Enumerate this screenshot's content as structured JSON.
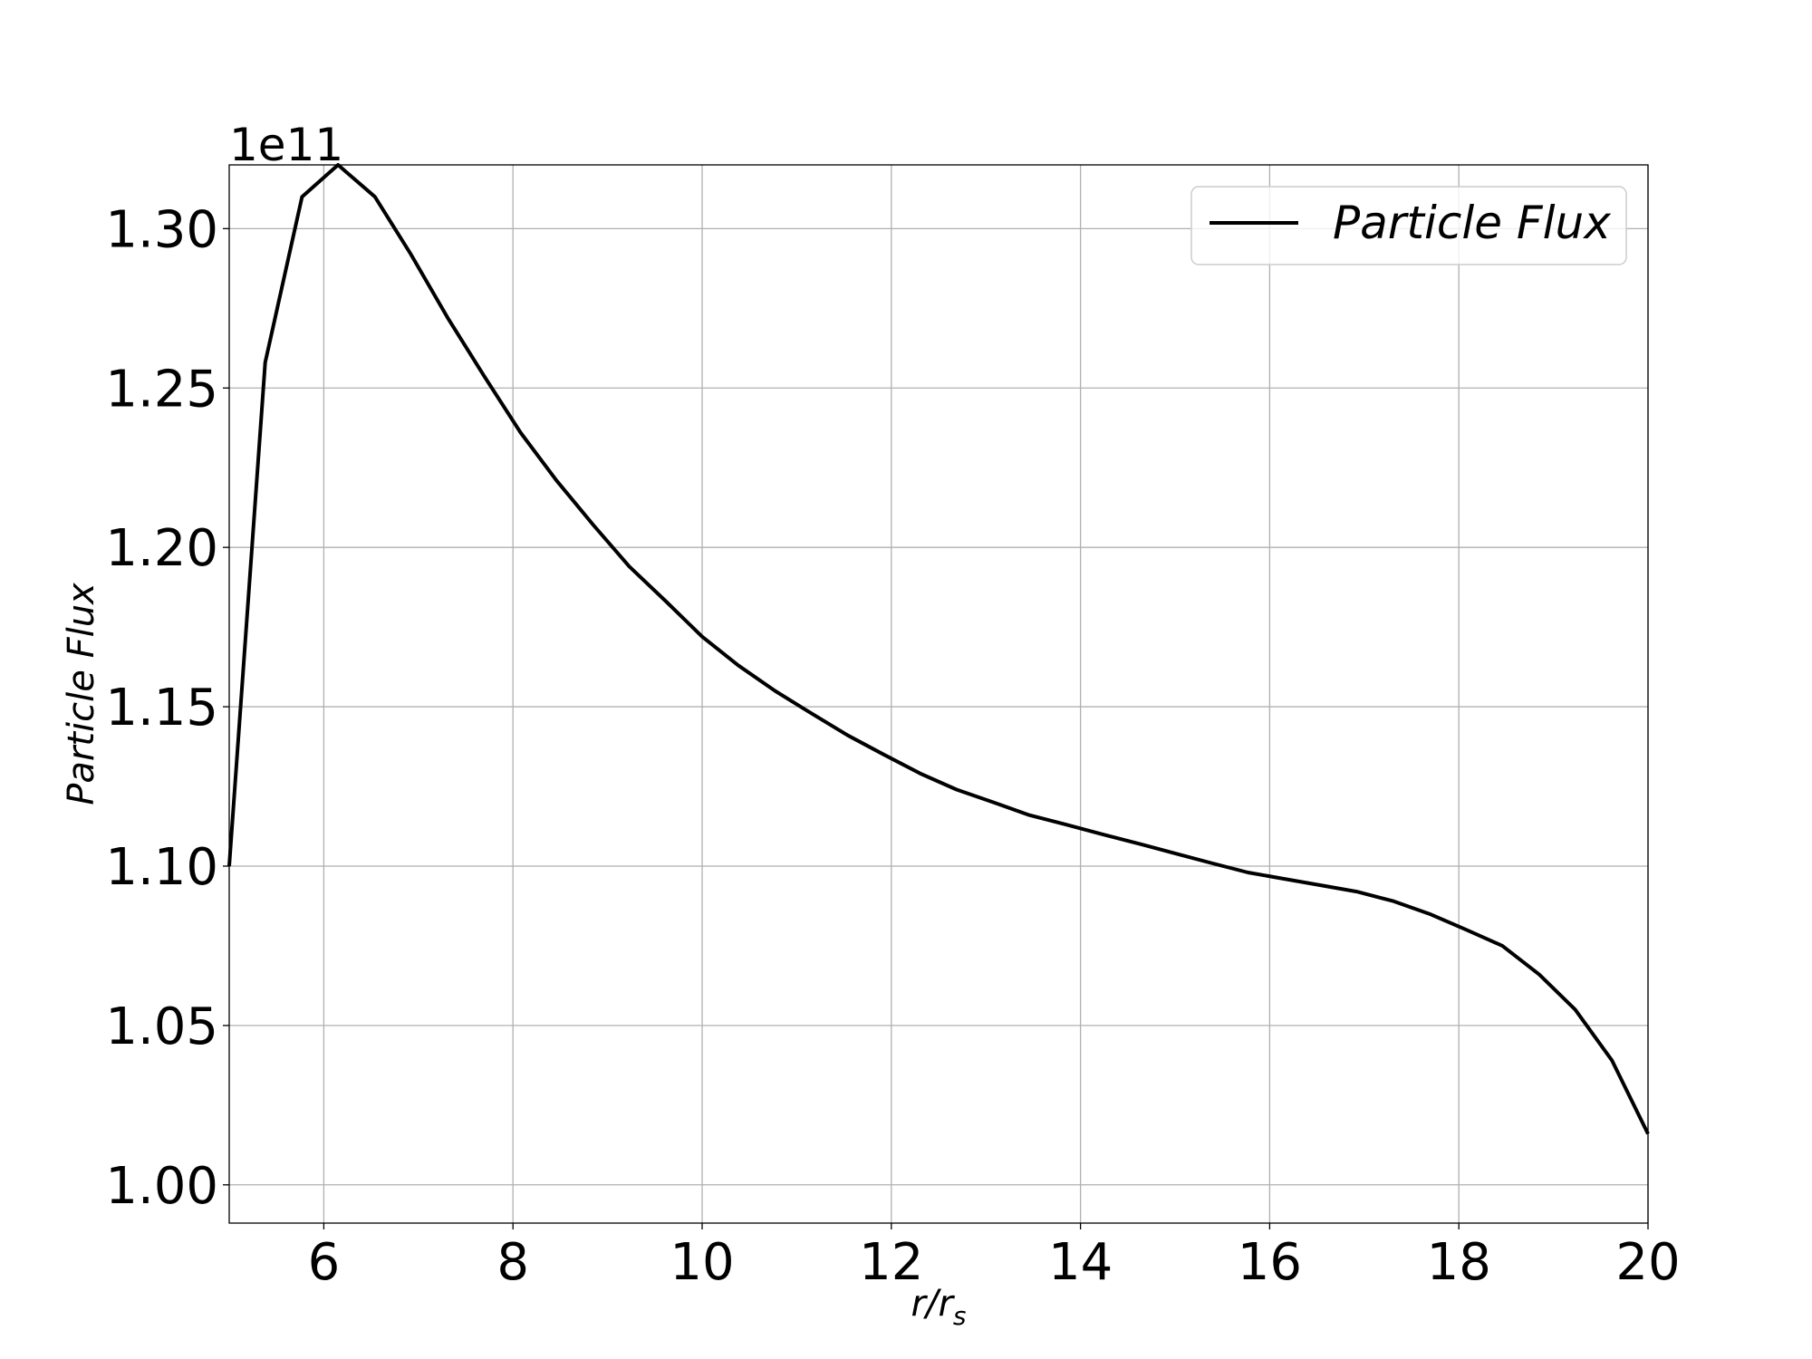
{
  "chart_data": {
    "type": "line",
    "title": "",
    "xlabel": "r/r",
    "xlabel_sub": "s",
    "ylabel": "Particle Flux",
    "y_offset_label": "1e11",
    "xlim": [
      5,
      20
    ],
    "ylim": [
      0.988,
      1.32
    ],
    "x_ticks": [
      6,
      8,
      10,
      12,
      14,
      16,
      18,
      20
    ],
    "x_tick_labels": [
      "6",
      "8",
      "10",
      "12",
      "14",
      "16",
      "18",
      "20"
    ],
    "y_ticks": [
      1.0,
      1.05,
      1.1,
      1.15,
      1.2,
      1.25,
      1.3
    ],
    "y_tick_labels": [
      "1.00",
      "1.05",
      "1.10",
      "1.15",
      "1.20",
      "1.25",
      "1.30"
    ],
    "grid": true,
    "legend_position": "top-right",
    "series": [
      {
        "name": "Particle Flux",
        "color": "#000000",
        "x": [
          5.0,
          5.38,
          5.77,
          6.15,
          6.54,
          6.92,
          7.31,
          7.69,
          8.08,
          8.46,
          8.85,
          9.23,
          9.62,
          10.0,
          10.38,
          10.77,
          11.15,
          11.54,
          11.92,
          12.31,
          12.69,
          13.08,
          13.46,
          13.85,
          14.23,
          14.62,
          15.0,
          15.38,
          15.77,
          16.15,
          16.54,
          16.92,
          17.31,
          17.69,
          18.08,
          18.46,
          18.85,
          19.23,
          19.62,
          20.0
        ],
        "values": [
          1.1,
          1.258,
          1.31,
          1.32,
          1.31,
          1.292,
          1.272,
          1.254,
          1.236,
          1.221,
          1.207,
          1.194,
          1.183,
          1.172,
          1.163,
          1.155,
          1.148,
          1.141,
          1.135,
          1.129,
          1.124,
          1.12,
          1.116,
          1.113,
          1.11,
          1.107,
          1.104,
          1.101,
          1.098,
          1.096,
          1.094,
          1.092,
          1.089,
          1.085,
          1.08,
          1.075,
          1.066,
          1.055,
          1.039,
          1.016
        ]
      }
    ]
  }
}
